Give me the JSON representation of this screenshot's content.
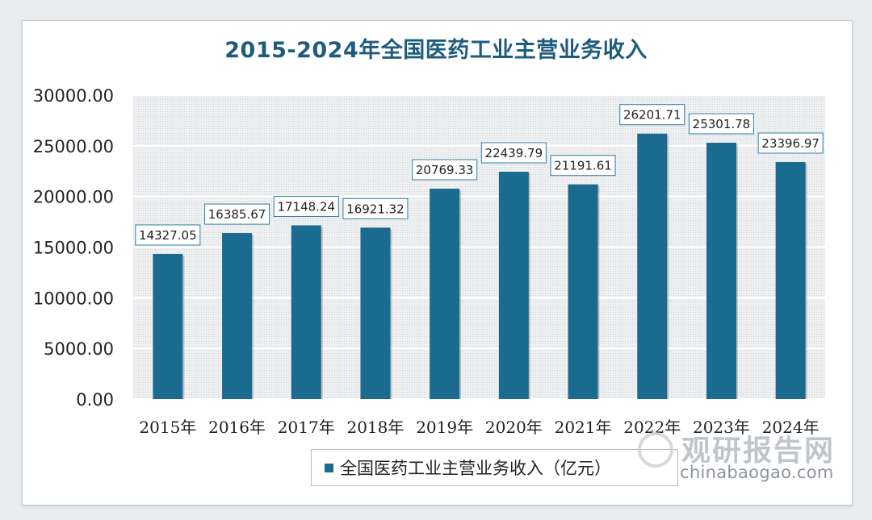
{
  "chart_data": {
    "type": "bar",
    "title": "2015-2024年全国医药工业主营业务收入",
    "categories": [
      "2015年",
      "2016年",
      "2017年",
      "2018年",
      "2019年",
      "2020年",
      "2021年",
      "2022年",
      "2023年",
      "2024年"
    ],
    "series": [
      {
        "name": "全国医药工业主营业务收入（亿元）",
        "values": [
          14327.05,
          16385.67,
          17148.24,
          16921.32,
          20769.33,
          22439.79,
          21191.61,
          26201.71,
          25301.78,
          23396.97
        ]
      }
    ],
    "data_labels": [
      "14327.05",
      "16385.67",
      "17148.24",
      "16921.32",
      "20769.33",
      "22439.79",
      "21191.61",
      "26201.71",
      "25301.78",
      "23396.97"
    ],
    "yticks": [
      0,
      5000,
      10000,
      15000,
      20000,
      25000,
      30000
    ],
    "ytick_labels": [
      "0.00",
      "5000.00",
      "10000.00",
      "15000.00",
      "20000.00",
      "25000.00",
      "30000.00"
    ],
    "ylim": [
      0,
      30000
    ],
    "grid": true,
    "legend_position": "bottom",
    "xlabel": "",
    "ylabel": ""
  },
  "colors": {
    "bar": "#1b6a8f",
    "title": "#1e5c7d",
    "label_border": "#2f7fa3",
    "plot_bg": "#e9ecef"
  },
  "watermark": {
    "cn": "观研报告网",
    "en": "chinabaogao.com"
  }
}
